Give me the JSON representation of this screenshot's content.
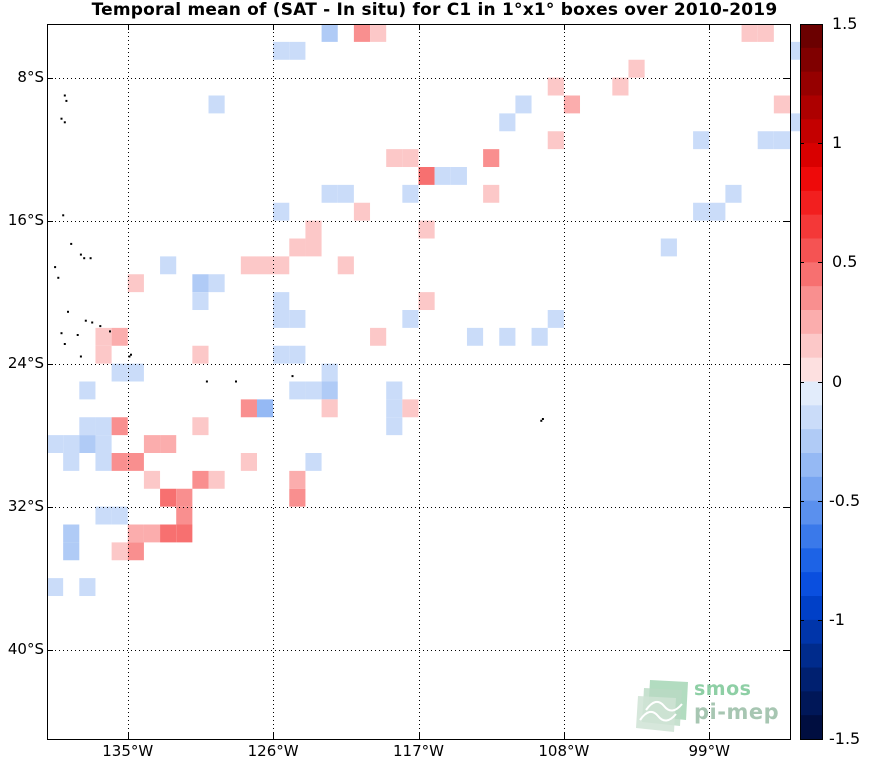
{
  "title": "Temporal mean of (SAT - In situ) for C1 in 1°x1° boxes over 2010-2019",
  "map": {
    "lon_range": [
      -140,
      -94
    ],
    "lat_range": [
      -45,
      -5
    ],
    "lat_ticks": [
      {
        "value": -8,
        "label": "8°S"
      },
      {
        "value": -16,
        "label": "16°S"
      },
      {
        "value": -24,
        "label": "24°S"
      },
      {
        "value": -32,
        "label": "32°S"
      },
      {
        "value": -40,
        "label": "40°S"
      }
    ],
    "lon_ticks": [
      {
        "value": -135,
        "label": "135°W"
      },
      {
        "value": -126,
        "label": "126°W"
      },
      {
        "value": -117,
        "label": "117°W"
      },
      {
        "value": -108,
        "label": "108°W"
      },
      {
        "value": -99,
        "label": "99°W"
      }
    ],
    "grid": "dotted",
    "islands": [
      {
        "lon": -139.1,
        "lat": -10.3
      },
      {
        "lon": -138.9,
        "lat": -10.5
      },
      {
        "lon": -138.8,
        "lat": -9.3
      },
      {
        "lon": -138.9,
        "lat": -9.0
      },
      {
        "lon": -139.0,
        "lat": -15.7
      },
      {
        "lon": -138.5,
        "lat": -17.3
      },
      {
        "lon": -137.9,
        "lat": -17.9
      },
      {
        "lon": -137.3,
        "lat": -18.1
      },
      {
        "lon": -137.7,
        "lat": -18.1
      },
      {
        "lon": -139.5,
        "lat": -18.6
      },
      {
        "lon": -139.3,
        "lat": -19.2
      },
      {
        "lon": -138.7,
        "lat": -21.1
      },
      {
        "lon": -137.6,
        "lat": -21.6
      },
      {
        "lon": -137.2,
        "lat": -21.7
      },
      {
        "lon": -136.7,
        "lat": -21.9
      },
      {
        "lon": -139.1,
        "lat": -22.3
      },
      {
        "lon": -138.9,
        "lat": -22.9
      },
      {
        "lon": -138.1,
        "lat": -22.4
      },
      {
        "lon": -136.1,
        "lat": -22.2
      },
      {
        "lon": -137.9,
        "lat": -23.6
      },
      {
        "lon": -134.9,
        "lat": -23.6
      },
      {
        "lon": -134.8,
        "lat": -23.5
      },
      {
        "lon": -130.1,
        "lat": -25.0
      },
      {
        "lon": -128.3,
        "lat": -25.0
      },
      {
        "lon": -124.8,
        "lat": -24.7
      },
      {
        "lon": -109.3,
        "lat": -27.1
      },
      {
        "lon": -109.4,
        "lat": -27.2
      }
    ]
  },
  "chart_data": {
    "type": "heatmap",
    "title": "Temporal mean of (SAT - In situ) for C1 in 1°x1° boxes over 2010-2019",
    "cell_size_deg": 1,
    "units": "",
    "colorbar": {
      "range": [
        -1.5,
        1.5
      ],
      "step": 0.1,
      "ticks": [
        1.5,
        1,
        0.5,
        0,
        -0.5,
        -1,
        -1.5
      ],
      "tick_labels": [
        "1.5",
        "1",
        "0.5",
        "0",
        "-0.5",
        "-1",
        "-1.5"
      ]
    },
    "cells": [
      {
        "lon": -122.5,
        "lat": -5.5,
        "value": -0.25
      },
      {
        "lon": -120.5,
        "lat": -5.5,
        "value": 0.35
      },
      {
        "lon": -119.5,
        "lat": -5.5,
        "value": 0.15
      },
      {
        "lon": -96.5,
        "lat": -5.5,
        "value": 0.15
      },
      {
        "lon": -95.5,
        "lat": -5.5,
        "value": 0.15
      },
      {
        "lon": -125.5,
        "lat": -6.5,
        "value": -0.15
      },
      {
        "lon": -124.5,
        "lat": -6.5,
        "value": -0.15
      },
      {
        "lon": -93.5,
        "lat": -6.5,
        "value": -0.15
      },
      {
        "lon": -103.5,
        "lat": -7.5,
        "value": 0.15
      },
      {
        "lon": -104.5,
        "lat": -8.5,
        "value": 0.15
      },
      {
        "lon": -108.5,
        "lat": -8.5,
        "value": 0.15
      },
      {
        "lon": -129.5,
        "lat": -9.5,
        "value": -0.15
      },
      {
        "lon": -110.5,
        "lat": -9.5,
        "value": -0.15
      },
      {
        "lon": -107.5,
        "lat": -9.5,
        "value": 0.2
      },
      {
        "lon": -94.5,
        "lat": -9.5,
        "value": 0.15
      },
      {
        "lon": -111.5,
        "lat": -10.5,
        "value": -0.15
      },
      {
        "lon": -93.5,
        "lat": -10.5,
        "value": -0.15
      },
      {
        "lon": -108.5,
        "lat": -11.5,
        "value": 0.15
      },
      {
        "lon": -99.5,
        "lat": -11.5,
        "value": -0.15
      },
      {
        "lon": -94.5,
        "lat": -11.5,
        "value": -0.15
      },
      {
        "lon": -95.5,
        "lat": -11.5,
        "value": -0.15
      },
      {
        "lon": -118.5,
        "lat": -12.5,
        "value": 0.15
      },
      {
        "lon": -117.5,
        "lat": -12.5,
        "value": 0.15
      },
      {
        "lon": -112.5,
        "lat": -12.5,
        "value": 0.35
      },
      {
        "lon": -116.5,
        "lat": -13.5,
        "value": 0.4
      },
      {
        "lon": -115.5,
        "lat": -13.5,
        "value": -0.15
      },
      {
        "lon": -114.5,
        "lat": -13.5,
        "value": -0.15
      },
      {
        "lon": -122.5,
        "lat": -14.5,
        "value": -0.15
      },
      {
        "lon": -121.5,
        "lat": -14.5,
        "value": -0.15
      },
      {
        "lon": -117.5,
        "lat": -14.5,
        "value": -0.15
      },
      {
        "lon": -112.5,
        "lat": -14.5,
        "value": 0.15
      },
      {
        "lon": -97.5,
        "lat": -14.5,
        "value": -0.15
      },
      {
        "lon": -125.5,
        "lat": -15.5,
        "value": -0.15
      },
      {
        "lon": -120.5,
        "lat": -15.5,
        "value": 0.15
      },
      {
        "lon": -98.5,
        "lat": -15.5,
        "value": -0.15
      },
      {
        "lon": -99.5,
        "lat": -15.5,
        "value": -0.15
      },
      {
        "lon": -123.5,
        "lat": -16.5,
        "value": 0.15
      },
      {
        "lon": -116.5,
        "lat": -16.5,
        "value": 0.15
      },
      {
        "lon": -124.5,
        "lat": -17.5,
        "value": 0.15
      },
      {
        "lon": -123.5,
        "lat": -17.5,
        "value": 0.15
      },
      {
        "lon": -101.5,
        "lat": -17.5,
        "value": -0.15
      },
      {
        "lon": -132.5,
        "lat": -18.5,
        "value": -0.15
      },
      {
        "lon": -127.5,
        "lat": -18.5,
        "value": 0.15
      },
      {
        "lon": -126.5,
        "lat": -18.5,
        "value": 0.15
      },
      {
        "lon": -125.5,
        "lat": -18.5,
        "value": 0.15
      },
      {
        "lon": -121.5,
        "lat": -18.5,
        "value": 0.15
      },
      {
        "lon": -134.5,
        "lat": -19.5,
        "value": 0.15
      },
      {
        "lon": -130.5,
        "lat": -19.5,
        "value": -0.25
      },
      {
        "lon": -129.5,
        "lat": -19.5,
        "value": -0.15
      },
      {
        "lon": -130.5,
        "lat": -20.5,
        "value": -0.15
      },
      {
        "lon": -125.5,
        "lat": -20.5,
        "value": -0.15
      },
      {
        "lon": -116.5,
        "lat": -20.5,
        "value": 0.15
      },
      {
        "lon": -125.5,
        "lat": -21.5,
        "value": -0.15
      },
      {
        "lon": -124.5,
        "lat": -21.5,
        "value": -0.15
      },
      {
        "lon": -117.5,
        "lat": -21.5,
        "value": -0.15
      },
      {
        "lon": -108.5,
        "lat": -21.5,
        "value": -0.15
      },
      {
        "lon": -136.5,
        "lat": -22.5,
        "value": 0.15
      },
      {
        "lon": -135.5,
        "lat": -22.5,
        "value": 0.2
      },
      {
        "lon": -119.5,
        "lat": -22.5,
        "value": 0.15
      },
      {
        "lon": -113.5,
        "lat": -22.5,
        "value": -0.15
      },
      {
        "lon": -111.5,
        "lat": -22.5,
        "value": -0.15
      },
      {
        "lon": -109.5,
        "lat": -22.5,
        "value": -0.15
      },
      {
        "lon": -136.5,
        "lat": -23.5,
        "value": 0.15
      },
      {
        "lon": -130.5,
        "lat": -23.5,
        "value": 0.15
      },
      {
        "lon": -125.5,
        "lat": -23.5,
        "value": -0.15
      },
      {
        "lon": -124.5,
        "lat": -23.5,
        "value": -0.15
      },
      {
        "lon": -135.5,
        "lat": -24.5,
        "value": -0.15
      },
      {
        "lon": -134.5,
        "lat": -24.5,
        "value": -0.15
      },
      {
        "lon": -122.5,
        "lat": -24.5,
        "value": -0.15
      },
      {
        "lon": -137.5,
        "lat": -25.5,
        "value": -0.15
      },
      {
        "lon": -124.5,
        "lat": -25.5,
        "value": -0.15
      },
      {
        "lon": -123.5,
        "lat": -25.5,
        "value": -0.15
      },
      {
        "lon": -122.5,
        "lat": -25.5,
        "value": -0.25
      },
      {
        "lon": -118.5,
        "lat": -25.5,
        "value": -0.15
      },
      {
        "lon": -127.5,
        "lat": -26.5,
        "value": 0.3
      },
      {
        "lon": -126.5,
        "lat": -26.5,
        "value": -0.35
      },
      {
        "lon": -122.5,
        "lat": -26.5,
        "value": 0.15
      },
      {
        "lon": -118.5,
        "lat": -26.5,
        "value": -0.15
      },
      {
        "lon": -117.5,
        "lat": -26.5,
        "value": 0.15
      },
      {
        "lon": -137.5,
        "lat": -27.5,
        "value": -0.15
      },
      {
        "lon": -136.5,
        "lat": -27.5,
        "value": -0.15
      },
      {
        "lon": -135.5,
        "lat": -27.5,
        "value": 0.3
      },
      {
        "lon": -130.5,
        "lat": -27.5,
        "value": 0.15
      },
      {
        "lon": -118.5,
        "lat": -27.5,
        "value": -0.15
      },
      {
        "lon": -139.5,
        "lat": -28.5,
        "value": -0.15
      },
      {
        "lon": -138.5,
        "lat": -28.5,
        "value": -0.15
      },
      {
        "lon": -137.5,
        "lat": -28.5,
        "value": -0.25
      },
      {
        "lon": -136.5,
        "lat": -28.5,
        "value": -0.15
      },
      {
        "lon": -133.5,
        "lat": -28.5,
        "value": 0.2
      },
      {
        "lon": -132.5,
        "lat": -28.5,
        "value": 0.2
      },
      {
        "lon": -138.5,
        "lat": -29.5,
        "value": -0.15
      },
      {
        "lon": -136.5,
        "lat": -29.5,
        "value": -0.15
      },
      {
        "lon": -135.5,
        "lat": -29.5,
        "value": 0.35
      },
      {
        "lon": -134.5,
        "lat": -29.5,
        "value": 0.3
      },
      {
        "lon": -127.5,
        "lat": -29.5,
        "value": 0.15
      },
      {
        "lon": -123.5,
        "lat": -29.5,
        "value": -0.15
      },
      {
        "lon": -133.5,
        "lat": -30.5,
        "value": 0.15
      },
      {
        "lon": -130.5,
        "lat": -30.5,
        "value": 0.3
      },
      {
        "lon": -129.5,
        "lat": -30.5,
        "value": 0.15
      },
      {
        "lon": -124.5,
        "lat": -30.5,
        "value": 0.2
      },
      {
        "lon": -132.5,
        "lat": -31.5,
        "value": 0.4
      },
      {
        "lon": -131.5,
        "lat": -31.5,
        "value": 0.3
      },
      {
        "lon": -124.5,
        "lat": -31.5,
        "value": 0.3
      },
      {
        "lon": -136.5,
        "lat": -32.5,
        "value": -0.15
      },
      {
        "lon": -135.5,
        "lat": -32.5,
        "value": -0.15
      },
      {
        "lon": -131.5,
        "lat": -32.5,
        "value": 0.3
      },
      {
        "lon": -134.5,
        "lat": -33.5,
        "value": 0.25
      },
      {
        "lon": -133.5,
        "lat": -33.5,
        "value": 0.25
      },
      {
        "lon": -132.5,
        "lat": -33.5,
        "value": 0.45
      },
      {
        "lon": -131.5,
        "lat": -33.5,
        "value": 0.45
      },
      {
        "lon": -138.5,
        "lat": -33.5,
        "value": -0.25
      },
      {
        "lon": -138.5,
        "lat": -34.5,
        "value": -0.25
      },
      {
        "lon": -135.5,
        "lat": -34.5,
        "value": 0.15
      },
      {
        "lon": -134.5,
        "lat": -34.5,
        "value": 0.3
      },
      {
        "lon": -139.5,
        "lat": -36.5,
        "value": -0.15
      },
      {
        "lon": -137.5,
        "lat": -36.5,
        "value": -0.15
      }
    ]
  },
  "logo": {
    "line1": "smos",
    "line2": "pi-mep"
  }
}
